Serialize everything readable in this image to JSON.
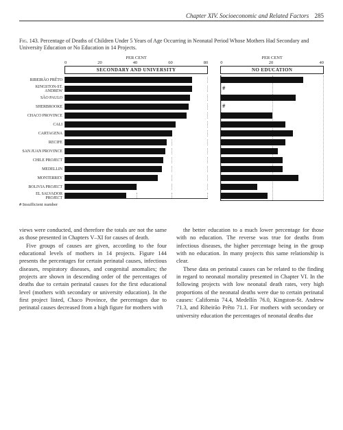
{
  "header": {
    "chapter": "Chapter XIV. Socioeconomic and Related Factors",
    "page": "285"
  },
  "figure": {
    "number": "Fig. 143.",
    "caption": "Percentage of Deaths of Children Under 5 Years of Age Occurring in Neonatal Period Whose Mothers Had Secondary and University Education or No Education in 14 Projects.",
    "unit_label": "PER CENT",
    "left_panel_title": "SECONDARY AND UNIVERSITY",
    "right_panel_title": "NO EDUCATION",
    "left_ticks": [
      "0",
      "20",
      "40",
      "60",
      "80"
    ],
    "right_ticks": [
      "0",
      "20",
      "40"
    ],
    "left_max": 80,
    "right_max": 40,
    "categories": [
      "RIBEIRÃO PRÊTO",
      "KINGSTON-ST. ANDREW",
      "SÃO PAULO",
      "SHERBROOKE",
      "CHACO PROVINCE",
      "CALI",
      "CARTAGENA",
      "RECIFE",
      "SAN JUAN PROVINCE",
      "CHILE PROJECT",
      "MEDELLIN",
      "MONTERREY",
      "BOLIVIA PROJECT",
      "EL SALVADOR PROJECT"
    ],
    "left_values": [
      71,
      71,
      70,
      69,
      68,
      62,
      60,
      57,
      56,
      55,
      54,
      52,
      40,
      34
    ],
    "left_insufficient": [
      false,
      false,
      false,
      false,
      false,
      false,
      false,
      false,
      false,
      false,
      false,
      false,
      false,
      false
    ],
    "right_values": [
      32,
      0,
      29,
      0,
      20,
      25,
      28,
      25,
      22,
      24,
      24,
      30,
      14,
      18
    ],
    "right_insufficient": [
      false,
      true,
      false,
      true,
      false,
      false,
      false,
      false,
      false,
      false,
      false,
      false,
      false,
      false
    ],
    "footnote_symbol": "#",
    "footnote_text": "Insufficient number",
    "bar_color": "#111111",
    "grid_color": "#aaaaaa",
    "background_color": "#ffffff"
  },
  "body": {
    "p1": "views were conducted, and therefore the totals are not the same as those presented in Chapters V–XI for causes of death.",
    "p2": "Five groups of causes are given, according to the four educational levels of mothers in 14 projects. Figure 144 presents the percentages for certain perinatal causes, infectious diseases, respiratory diseases, and congenital anomalies; the projects are shown in descending order of the percentages of deaths due to certain perinatal causes for the first educational level (mothers with secondary or university education). In the first project listed, Chaco Province, the percentages due to perinatal causes decreased from a high figure for mothers with",
    "p3": "the better education to a much lower percentage for those with no education. The reverse was true for deaths from infectious diseases, the higher percentage being in the group with no education. In many projects this same relationship is clear.",
    "p4": "These data on perinatal causes can be related to the finding in regard to neonatal mortality presented in Chapter VI. In the following projects with low neonatal death rates, very high proportions of the neonatal deaths were due to certain perinatal causes: California 74.4, Medellín 76.0, Kingston-St. Andrew 71.3, and Ribeirão Prêto 71.1. For mothers with secondary or university education the percentages of neonatal deaths due"
  }
}
